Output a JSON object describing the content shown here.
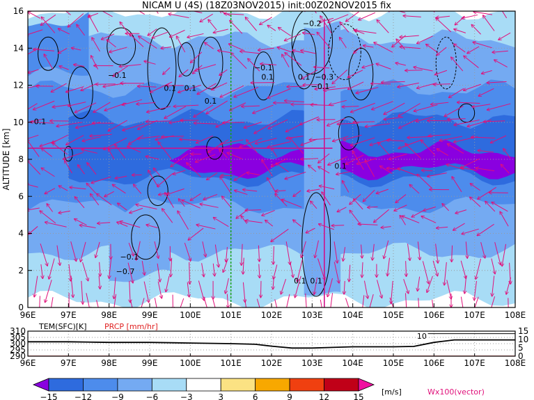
{
  "chart_data": [
    {
      "type": "heatmap",
      "title": "NICAM U (4S) (18Z03NOV2015) init:00Z02NOV2015 fix",
      "xlabel": "",
      "ylabel": "ALTITUDE [km]",
      "x_ticks": [
        "96E",
        "97E",
        "98E",
        "99E",
        "100E",
        "101E",
        "102E",
        "103E",
        "104E",
        "105E",
        "106E",
        "107E",
        "108E"
      ],
      "y_ticks": [
        "0",
        "2",
        "4",
        "6",
        "8",
        "10",
        "12",
        "14",
        "16"
      ],
      "xlim": [
        96,
        108
      ],
      "ylim": [
        0,
        16
      ],
      "grid": true,
      "colorbar": {
        "levels": [
          -15,
          -12,
          -9,
          -6,
          -3,
          3,
          6,
          9,
          12,
          15
        ],
        "labels": [
          "−15",
          "−12",
          "−9",
          "−6",
          "−3",
          "3",
          "6",
          "9",
          "12",
          "15"
        ],
        "colors": [
          "#8a00e0",
          "#2e6bde",
          "#4d8cec",
          "#74aaf2",
          "#a8dcf6",
          "#ffffff",
          "#fbe283",
          "#f8a800",
          "#f04010",
          "#c00018",
          "#f010a0"
        ],
        "unit": "[m/s]"
      },
      "vector_label": "Wx100(vector)",
      "contour_labels": [
        "−0.2",
        "0.1",
        "−0.1",
        "0.1",
        "0.1",
        "0.1",
        "0.1",
        "0.1",
        "−0.1",
        "−0.3",
        "0.1",
        "0.1",
        "0.1",
        "−0.1",
        "−0.7",
        "−0.1"
      ],
      "marker_lines": {
        "green_longitude": 101.0,
        "magenta_longitude": 103.3
      }
    },
    {
      "type": "line",
      "series": [
        {
          "name": "TEM(SFC)[K]",
          "x": [
            96,
            97,
            98,
            99,
            100,
            101,
            101.6,
            102,
            102.5,
            103,
            103.5,
            104,
            104.5,
            105,
            105.5,
            106,
            106.5,
            107,
            108
          ],
          "values": [
            301.5,
            301.5,
            301.0,
            301.0,
            300.5,
            300.0,
            299.5,
            298.0,
            296.5,
            296.5,
            297.0,
            297.5,
            297.5,
            297.5,
            297.8,
            301.0,
            303.0,
            303.0,
            303.0
          ]
        },
        {
          "name": "PRCP [mm/hr]",
          "x": [
            96,
            108
          ],
          "values": [
            0,
            0
          ]
        }
      ],
      "left_axis": {
        "ticks": [
          "290",
          "295",
          "300",
          "305",
          "310"
        ],
        "range": [
          290,
          310
        ]
      },
      "right_axis": {
        "ticks": [
          "0",
          "5",
          "10",
          "15"
        ],
        "range": [
          0,
          15
        ]
      },
      "x_ticks": [
        "96E",
        "97E",
        "98E",
        "99E",
        "100E",
        "101E",
        "102E",
        "103E",
        "104E",
        "105E",
        "106E",
        "107E",
        "108E"
      ],
      "annotation": "10"
    }
  ]
}
